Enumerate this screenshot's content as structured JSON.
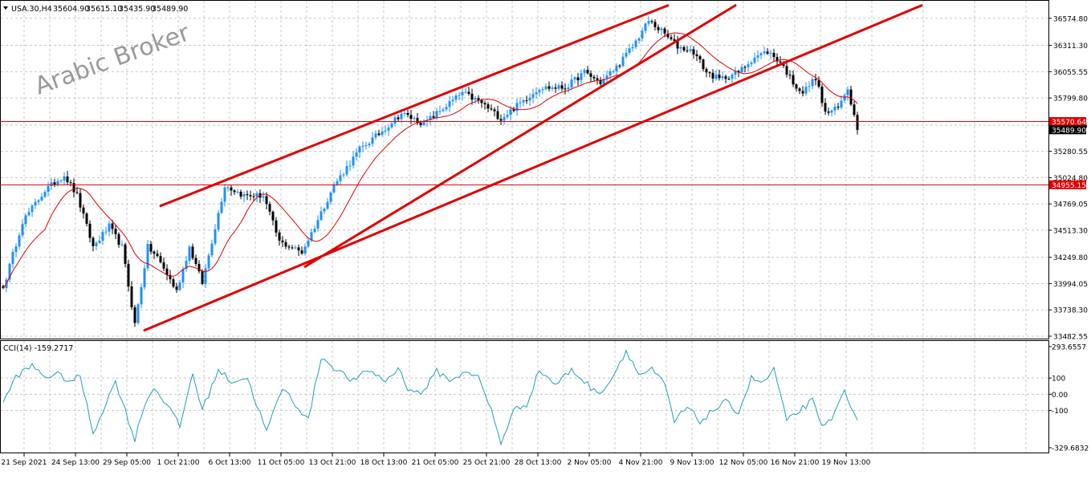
{
  "header": {
    "symbol": "USA.30,H4",
    "open": "35604.90",
    "high": "35615.10",
    "low": "35435.90",
    "close": "35489.90"
  },
  "watermark": "Arabic Broker",
  "colors": {
    "bull": "#1e90ff",
    "bear": "#000000",
    "ma": "#e00000",
    "trendline": "#e00000",
    "hline": "#e00000",
    "cci": "#20a0b0",
    "grid": "#c8c8c8"
  },
  "chart_data": [
    {
      "type": "candlestick",
      "panel": "main",
      "ylim": [
        33482.55,
        36700
      ],
      "y_ticks": [
        "36574.80",
        "36311.30",
        "36055.55",
        "35799.80",
        "35536.05",
        "35280.55",
        "35024.80",
        "34769.05",
        "34513.30",
        "34249.80",
        "33994.05",
        "33738.30",
        "33482.55"
      ],
      "x_ticks": [
        "21 Sep 2021",
        "24 Sep 13:00",
        "29 Sep 05:00",
        "1 Oct 21:00",
        "6 Oct 13:00",
        "11 Oct 05:00",
        "13 Oct 21:00",
        "18 Oct 13:00",
        "21 Oct 05:00",
        "25 Oct 21:00",
        "28 Oct 13:00",
        "2 Nov 05:00",
        "4 Nov 21:00",
        "9 Nov 13:00",
        "12 Nov 05:00",
        "16 Nov 21:00",
        "19 Nov 13:00"
      ],
      "key_points": [
        {
          "i": 0,
          "v": 33950
        },
        {
          "i": 6,
          "v": 34600
        },
        {
          "i": 13,
          "v": 34900
        },
        {
          "i": 19,
          "v": 35050
        },
        {
          "i": 23,
          "v": 34850
        },
        {
          "i": 28,
          "v": 34350
        },
        {
          "i": 33,
          "v": 34550
        },
        {
          "i": 37,
          "v": 34350
        },
        {
          "i": 41,
          "v": 33600
        },
        {
          "i": 45,
          "v": 34350
        },
        {
          "i": 48,
          "v": 34250
        },
        {
          "i": 54,
          "v": 33920
        },
        {
          "i": 58,
          "v": 34350
        },
        {
          "i": 62,
          "v": 34000
        },
        {
          "i": 69,
          "v": 34950
        },
        {
          "i": 75,
          "v": 34850
        },
        {
          "i": 81,
          "v": 34850
        },
        {
          "i": 86,
          "v": 34400
        },
        {
          "i": 93,
          "v": 34300
        },
        {
          "i": 97,
          "v": 34550
        },
        {
          "i": 103,
          "v": 34950
        },
        {
          "i": 111,
          "v": 35300
        },
        {
          "i": 117,
          "v": 35450
        },
        {
          "i": 124,
          "v": 35650
        },
        {
          "i": 131,
          "v": 35550
        },
        {
          "i": 137,
          "v": 35700
        },
        {
          "i": 143,
          "v": 35850
        },
        {
          "i": 149,
          "v": 35750
        },
        {
          "i": 155,
          "v": 35600
        },
        {
          "i": 161,
          "v": 35750
        },
        {
          "i": 167,
          "v": 35900
        },
        {
          "i": 175,
          "v": 35900
        },
        {
          "i": 181,
          "v": 36050
        },
        {
          "i": 186,
          "v": 35950
        },
        {
          "i": 191,
          "v": 36100
        },
        {
          "i": 196,
          "v": 36300
        },
        {
          "i": 201,
          "v": 36550
        },
        {
          "i": 205,
          "v": 36450
        },
        {
          "i": 210,
          "v": 36300
        },
        {
          "i": 215,
          "v": 36250
        },
        {
          "i": 219,
          "v": 36050
        },
        {
          "i": 223,
          "v": 35980
        },
        {
          "i": 229,
          "v": 36050
        },
        {
          "i": 234,
          "v": 36200
        },
        {
          "i": 238,
          "v": 36250
        },
        {
          "i": 242,
          "v": 36150
        },
        {
          "i": 246,
          "v": 35950
        },
        {
          "i": 249,
          "v": 35850
        },
        {
          "i": 253,
          "v": 36000
        },
        {
          "i": 256,
          "v": 35650
        },
        {
          "i": 260,
          "v": 35700
        },
        {
          "i": 263,
          "v": 35900
        },
        {
          "i": 266,
          "v": 35490
        }
      ],
      "moving_average": true,
      "horizontal_lines": [
        {
          "value": 35570.64,
          "label": "35570.64"
        },
        {
          "value": 34955.15,
          "label": "34955.15"
        }
      ],
      "current_price": {
        "value": 35489.9,
        "label": "35489.90"
      },
      "trendlines": [
        {
          "from": {
            "i": 49,
            "v": 34750
          },
          "to": {
            "i": 207,
            "v": 36700
          }
        },
        {
          "from": {
            "i": 44,
            "v": 33540
          },
          "to": {
            "i": 286,
            "v": 36700
          }
        },
        {
          "from": {
            "i": 94,
            "v": 34160
          },
          "to": {
            "i": 228,
            "v": 36700
          }
        }
      ]
    },
    {
      "type": "line",
      "panel": "indicator",
      "indicator_label": "CCI(14) -159.2717",
      "ylim": [
        -329.6832,
        293.6557
      ],
      "y_ticks": [
        "293.6557",
        "100",
        "0.00",
        "-100",
        "-329.6832"
      ],
      "key_points": [
        {
          "i": 0,
          "v": -50
        },
        {
          "i": 4,
          "v": 110
        },
        {
          "i": 9,
          "v": 175
        },
        {
          "i": 13,
          "v": 110
        },
        {
          "i": 17,
          "v": 120
        },
        {
          "i": 21,
          "v": 80
        },
        {
          "i": 24,
          "v": 110
        },
        {
          "i": 28,
          "v": -240
        },
        {
          "i": 31,
          "v": -100
        },
        {
          "i": 35,
          "v": 80
        },
        {
          "i": 38,
          "v": -100
        },
        {
          "i": 41,
          "v": -280
        },
        {
          "i": 44,
          "v": -60
        },
        {
          "i": 47,
          "v": 40
        },
        {
          "i": 51,
          "v": -60
        },
        {
          "i": 55,
          "v": -200
        },
        {
          "i": 59,
          "v": 130
        },
        {
          "i": 62,
          "v": -100
        },
        {
          "i": 67,
          "v": 150
        },
        {
          "i": 71,
          "v": 80
        },
        {
          "i": 76,
          "v": 100
        },
        {
          "i": 82,
          "v": -230
        },
        {
          "i": 87,
          "v": 40
        },
        {
          "i": 91,
          "v": -60
        },
        {
          "i": 95,
          "v": -160
        },
        {
          "i": 99,
          "v": 230
        },
        {
          "i": 104,
          "v": 150
        },
        {
          "i": 109,
          "v": 80
        },
        {
          "i": 114,
          "v": 150
        },
        {
          "i": 119,
          "v": 80
        },
        {
          "i": 123,
          "v": 160
        },
        {
          "i": 126,
          "v": 40
        },
        {
          "i": 130,
          "v": 0
        },
        {
          "i": 135,
          "v": 140
        },
        {
          "i": 140,
          "v": 80
        },
        {
          "i": 144,
          "v": 150
        },
        {
          "i": 148,
          "v": 100
        },
        {
          "i": 152,
          "v": -100
        },
        {
          "i": 155,
          "v": -300
        },
        {
          "i": 159,
          "v": -100
        },
        {
          "i": 163,
          "v": -60
        },
        {
          "i": 167,
          "v": 150
        },
        {
          "i": 172,
          "v": 60
        },
        {
          "i": 177,
          "v": 150
        },
        {
          "i": 181,
          "v": 80
        },
        {
          "i": 185,
          "v": 0
        },
        {
          "i": 189,
          "v": 80
        },
        {
          "i": 194,
          "v": 270
        },
        {
          "i": 198,
          "v": 120
        },
        {
          "i": 202,
          "v": 150
        },
        {
          "i": 206,
          "v": 60
        },
        {
          "i": 209,
          "v": -170
        },
        {
          "i": 213,
          "v": -80
        },
        {
          "i": 217,
          "v": -170
        },
        {
          "i": 221,
          "v": -100
        },
        {
          "i": 225,
          "v": -50
        },
        {
          "i": 229,
          "v": -110
        },
        {
          "i": 233,
          "v": 100
        },
        {
          "i": 237,
          "v": 70
        },
        {
          "i": 240,
          "v": 160
        },
        {
          "i": 244,
          "v": -170
        },
        {
          "i": 248,
          "v": -100
        },
        {
          "i": 252,
          "v": -40
        },
        {
          "i": 255,
          "v": -210
        },
        {
          "i": 259,
          "v": -120
        },
        {
          "i": 262,
          "v": 30
        },
        {
          "i": 266,
          "v": -159.27
        }
      ]
    }
  ]
}
